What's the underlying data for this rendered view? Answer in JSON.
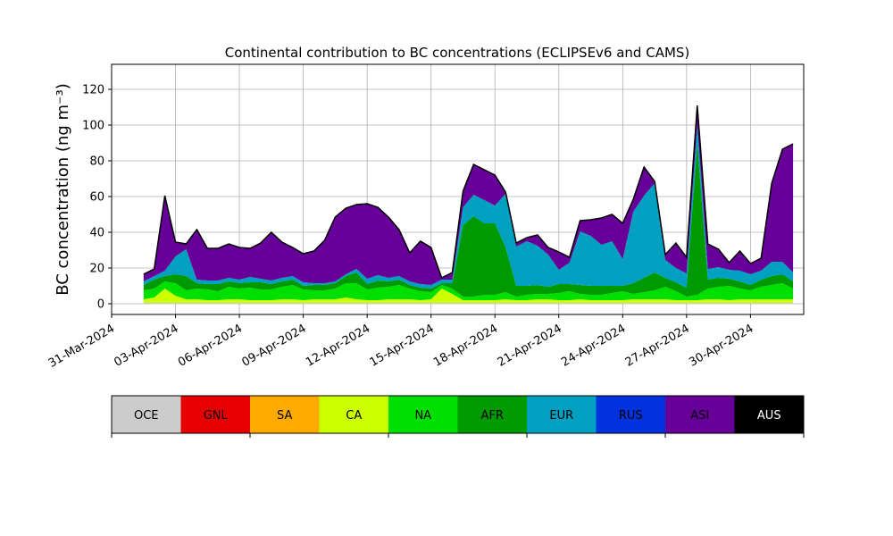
{
  "chart_data": {
    "type": "area",
    "stacked": true,
    "title": "Continental contribution to BC concentrations (ECLIPSEv6 and CAMS)",
    "ylabel": "BC concentration (ng m⁻³)",
    "xlabel": "",
    "xlim": [
      "2024-03-31 00:00",
      "2024-05-02 12:00"
    ],
    "ylim": [
      -6,
      134
    ],
    "grid": true,
    "x_ticks": [
      "31-Mar-2024",
      "03-Apr-2024",
      "06-Apr-2024",
      "09-Apr-2024",
      "12-Apr-2024",
      "15-Apr-2024",
      "18-Apr-2024",
      "21-Apr-2024",
      "24-Apr-2024",
      "27-Apr-2024",
      "30-Apr-2024"
    ],
    "y_ticks": [
      0,
      20,
      40,
      60,
      80,
      100,
      120
    ],
    "x": [
      "2024-04-01 12:00",
      "2024-04-02 00:00",
      "2024-04-02 12:00",
      "2024-04-03 00:00",
      "2024-04-03 12:00",
      "2024-04-04 00:00",
      "2024-04-04 12:00",
      "2024-04-05 00:00",
      "2024-04-05 12:00",
      "2024-04-06 00:00",
      "2024-04-06 12:00",
      "2024-04-07 00:00",
      "2024-04-07 12:00",
      "2024-04-08 00:00",
      "2024-04-08 12:00",
      "2024-04-09 00:00",
      "2024-04-09 12:00",
      "2024-04-10 00:00",
      "2024-04-10 12:00",
      "2024-04-11 00:00",
      "2024-04-11 12:00",
      "2024-04-12 00:00",
      "2024-04-12 12:00",
      "2024-04-13 00:00",
      "2024-04-13 12:00",
      "2024-04-14 00:00",
      "2024-04-14 12:00",
      "2024-04-15 00:00",
      "2024-04-15 12:00",
      "2024-04-16 00:00",
      "2024-04-16 12:00",
      "2024-04-17 00:00",
      "2024-04-17 12:00",
      "2024-04-18 00:00",
      "2024-04-18 12:00",
      "2024-04-19 00:00",
      "2024-04-19 12:00",
      "2024-04-20 00:00",
      "2024-04-20 12:00",
      "2024-04-21 00:00",
      "2024-04-21 12:00",
      "2024-04-22 00:00",
      "2024-04-22 12:00",
      "2024-04-23 00:00",
      "2024-04-23 12:00",
      "2024-04-24 00:00",
      "2024-04-24 12:00",
      "2024-04-25 00:00",
      "2024-04-25 12:00",
      "2024-04-26 00:00",
      "2024-04-26 12:00",
      "2024-04-27 00:00",
      "2024-04-27 12:00",
      "2024-04-28 00:00",
      "2024-04-28 12:00",
      "2024-04-29 00:00",
      "2024-04-29 12:00",
      "2024-04-30 00:00",
      "2024-04-30 12:00",
      "2024-05-01 00:00",
      "2024-05-01 12:00",
      "2024-05-02 00:00"
    ],
    "series": [
      {
        "name": "OCE",
        "color": "#cccccc",
        "values": [
          0.5,
          0.5,
          0.5,
          0.5,
          0.5,
          0.5,
          0.5,
          0.5,
          0.5,
          0.5,
          0.5,
          0.5,
          0.5,
          0.5,
          0.5,
          0.5,
          0.5,
          0.5,
          0.5,
          0.5,
          0.5,
          0.5,
          0.5,
          0.5,
          0.5,
          0.5,
          0.5,
          0.5,
          0.5,
          0.5,
          0.5,
          0.5,
          0.5,
          0.5,
          0.5,
          0.5,
          0.5,
          0.5,
          0.5,
          0.5,
          0.5,
          0.5,
          0.5,
          0.5,
          0.5,
          0.5,
          0.5,
          0.5,
          0.5,
          0.5,
          0.5,
          0.5,
          0.5,
          0.5,
          0.5,
          0.5,
          0.5,
          0.5,
          0.5,
          0.5,
          0.5,
          0.5
        ]
      },
      {
        "name": "GNL",
        "color": "#e60000",
        "values": [
          0,
          0,
          0,
          0,
          0,
          0,
          0,
          0,
          0,
          0,
          0,
          0,
          0,
          0,
          0,
          0,
          0,
          0,
          0,
          0,
          0,
          0,
          0,
          0,
          0,
          0,
          0,
          0,
          0,
          0,
          0,
          0,
          0,
          0,
          0,
          0,
          0,
          0,
          0,
          0,
          0,
          0,
          0,
          0,
          0,
          0,
          0,
          0,
          0,
          0,
          0,
          0,
          0,
          0,
          0,
          0,
          0,
          0,
          0,
          0,
          0,
          0
        ]
      },
      {
        "name": "SA",
        "color": "#ffaa00",
        "values": [
          0,
          0,
          0,
          0,
          0,
          0,
          0,
          0,
          0,
          0,
          0,
          0,
          0,
          0,
          0,
          0,
          0,
          0,
          0,
          0,
          0,
          0,
          0,
          0,
          0,
          0,
          0,
          0,
          0,
          0,
          0,
          0,
          0,
          0,
          0,
          0,
          0,
          0,
          0,
          0,
          0,
          0,
          0,
          0,
          0,
          0,
          0,
          0,
          0,
          0,
          0,
          0,
          0,
          0,
          0,
          0,
          0,
          0,
          0,
          0,
          0,
          0
        ]
      },
      {
        "name": "CA",
        "color": "#ccff00",
        "values": [
          2,
          3,
          8,
          4,
          2,
          2,
          1.5,
          1.5,
          2,
          2,
          1.5,
          1.5,
          1.5,
          2,
          2,
          1.5,
          2,
          2,
          2,
          3,
          2,
          1.5,
          1.5,
          2,
          2,
          2,
          1.5,
          2,
          8,
          5,
          1.5,
          1.5,
          1.5,
          1.5,
          2,
          1.5,
          1.5,
          2,
          2,
          1.5,
          1.5,
          2,
          1.5,
          1.5,
          1.5,
          1.5,
          2,
          2,
          2,
          2,
          1.5,
          1.5,
          1.5,
          2,
          2,
          1.5,
          2,
          2,
          2,
          2,
          2,
          2
        ]
      },
      {
        "name": "NA",
        "color": "#00e000",
        "values": [
          5,
          5,
          4,
          7,
          5,
          6,
          6,
          5,
          7,
          6,
          7,
          6,
          6,
          7,
          8,
          6,
          5,
          5,
          6,
          8,
          9,
          6,
          7,
          7,
          8,
          6,
          5,
          4,
          2,
          3,
          2,
          2,
          3,
          3,
          4,
          2,
          3,
          3,
          3,
          4,
          5,
          3,
          3,
          3,
          4,
          5,
          3,
          4,
          5,
          7,
          5,
          2,
          3,
          6,
          7,
          8,
          6,
          5,
          7,
          8,
          9,
          6
        ]
      },
      {
        "name": "AFR",
        "color": "#009900",
        "values": [
          3,
          5,
          3,
          5,
          8,
          3,
          3,
          4,
          3,
          3,
          3,
          4,
          3,
          3,
          3,
          2,
          3,
          3,
          3,
          4,
          6,
          3,
          4,
          3,
          3,
          2,
          2,
          2,
          1,
          3,
          40,
          45,
          40,
          40,
          25,
          6,
          5,
          5,
          4,
          5,
          4,
          5,
          5,
          5,
          4,
          3,
          6,
          8,
          10,
          5,
          5,
          5,
          85,
          5,
          5,
          4,
          4,
          3,
          4,
          5,
          5,
          4
        ]
      },
      {
        "name": "EUR",
        "color": "#00a0c0",
        "values": [
          2,
          2,
          3,
          10,
          15,
          2,
          2,
          2,
          2,
          2,
          3,
          2,
          2,
          2,
          2,
          2,
          1,
          1,
          1,
          1,
          2,
          3,
          3,
          2,
          2,
          2,
          2,
          2,
          2,
          2,
          10,
          12,
          13,
          10,
          30,
          22,
          25,
          22,
          18,
          8,
          12,
          30,
          28,
          23,
          25,
          15,
          40,
          46,
          50,
          10,
          8,
          8,
          10,
          6,
          6,
          5,
          6,
          6,
          5,
          8,
          7,
          5
        ]
      },
      {
        "name": "RUS",
        "color": "#0033dd",
        "values": [
          0,
          0,
          0,
          0,
          0,
          0,
          0,
          0,
          0,
          0,
          0,
          0,
          0,
          0,
          0,
          0,
          0,
          0,
          0,
          0,
          0,
          0,
          0,
          0,
          0,
          0,
          0,
          0,
          0,
          0,
          0,
          0,
          0,
          0,
          0,
          0,
          0,
          0,
          0,
          0,
          0,
          0,
          0,
          0,
          0,
          0,
          0,
          0,
          0,
          0,
          0,
          0,
          0,
          0,
          0,
          0,
          0,
          0,
          0,
          0,
          0,
          0
        ]
      },
      {
        "name": "ASI",
        "color": "#660099",
        "values": [
          4,
          4,
          42,
          8,
          3,
          28,
          18,
          18,
          19,
          18,
          16,
          20,
          27,
          20,
          16,
          16,
          18,
          24,
          36,
          37,
          36,
          42,
          38,
          34,
          26,
          16,
          24,
          21,
          1,
          4,
          9,
          17,
          17,
          17,
          1,
          2,
          2,
          6,
          4,
          10,
          3,
          6,
          9,
          15,
          15,
          20,
          7,
          16,
          1,
          3,
          14,
          9,
          11,
          14,
          10,
          4,
          11,
          6,
          7,
          44,
          63,
          72
        ]
      },
      {
        "name": "AUS",
        "color": "#000000",
        "values": [
          0,
          0,
          0,
          0,
          0,
          0,
          0,
          0,
          0,
          0,
          0,
          0,
          0,
          0,
          0,
          0,
          0,
          0,
          0,
          0,
          0,
          0,
          0,
          0,
          0,
          0,
          0,
          0,
          0,
          0,
          0,
          0,
          0,
          0,
          0,
          0,
          0,
          0,
          0,
          0,
          0,
          0,
          0,
          0,
          0,
          0,
          0,
          0,
          0,
          0,
          0,
          0,
          0,
          0,
          0,
          0,
          0,
          0,
          0,
          0,
          0,
          0
        ]
      }
    ],
    "colorbar": {
      "labels": [
        "OCE",
        "GNL",
        "SA",
        "CA",
        "NA",
        "AFR",
        "EUR",
        "RUS",
        "ASI",
        "AUS"
      ],
      "colors": [
        "#cccccc",
        "#e60000",
        "#ffaa00",
        "#ccff00",
        "#00e000",
        "#009900",
        "#00a0c0",
        "#0033dd",
        "#660099",
        "#000000"
      ],
      "placement": "bottom"
    }
  }
}
